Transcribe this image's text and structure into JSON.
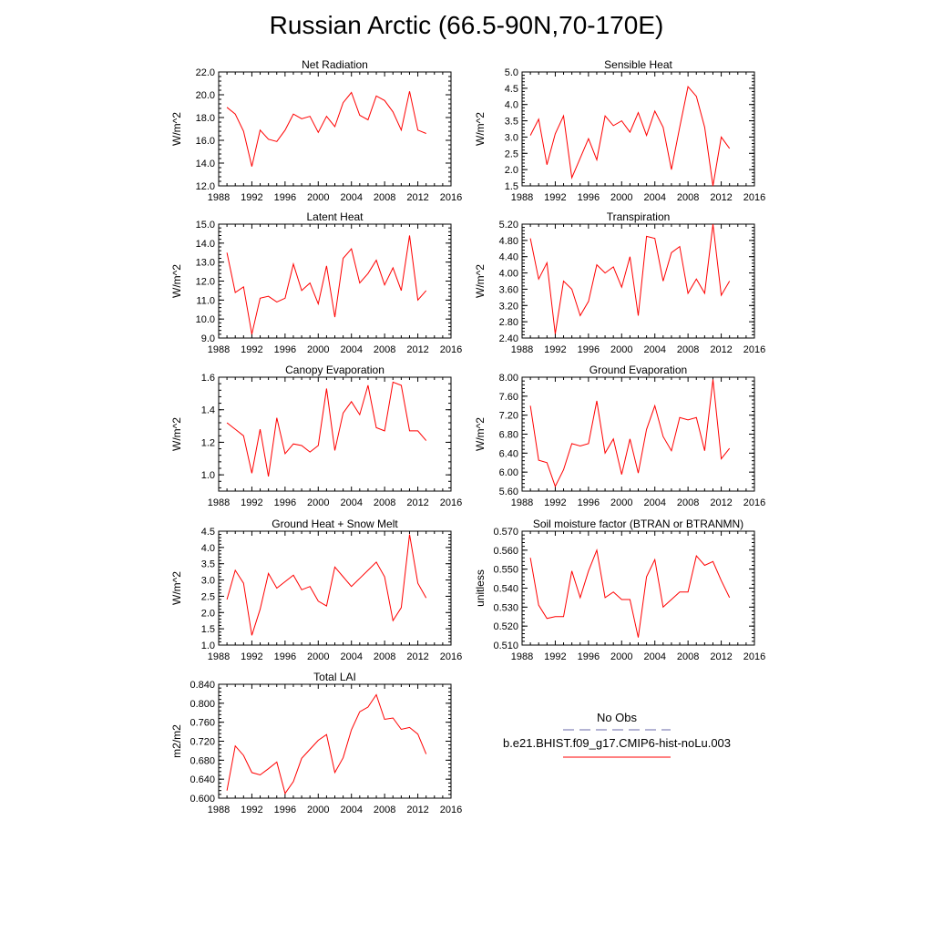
{
  "title": "Russian Arctic (66.5-90N,70-170E)",
  "colors": {
    "model": "#ff0000",
    "obs": "#6a6aa8"
  },
  "legend": {
    "obs_label": "No Obs",
    "model_label": "b.e21.BHIST.f09_g17.CMIP6-hist-noLu.003"
  },
  "chart_data": [
    {
      "type": "line",
      "title": "Net Radiation",
      "ylabel": "W/m^2",
      "xlim": [
        1988,
        2016
      ],
      "xticks": [
        1988,
        1992,
        1996,
        2000,
        2004,
        2008,
        2012,
        2016
      ],
      "xtick_labels": [
        "1988",
        "1992",
        "1996",
        "2000",
        "2004",
        "2008",
        "2012",
        "2016"
      ],
      "ylim": [
        12,
        22
      ],
      "yticks": [
        12,
        14,
        16,
        18,
        20,
        22
      ],
      "ytick_labels": [
        "12.0",
        "14.0",
        "16.0",
        "18.0",
        "20.0",
        "22.0"
      ],
      "series": [
        {
          "x": [
            1989,
            1990,
            1991,
            1992,
            1993,
            1994,
            1995,
            1996,
            1997,
            1998,
            1999,
            2000,
            2001,
            2002,
            2003,
            2004,
            2005,
            2006,
            2007,
            2008,
            2009,
            2010,
            2011,
            2012,
            2013
          ],
          "y": [
            18.9,
            18.3,
            16.8,
            13.7,
            16.9,
            16.1,
            15.9,
            16.9,
            18.3,
            17.9,
            18.1,
            16.7,
            18.1,
            17.2,
            19.3,
            20.2,
            18.2,
            17.8,
            19.9,
            19.5,
            18.5,
            16.9,
            20.3,
            16.9,
            16.6
          ]
        }
      ]
    },
    {
      "type": "line",
      "title": "Sensible Heat",
      "ylabel": "W/m^2",
      "xlim": [
        1988,
        2016
      ],
      "xticks": [
        1988,
        1992,
        1996,
        2000,
        2004,
        2008,
        2012,
        2016
      ],
      "xtick_labels": [
        "1988",
        "1992",
        "1996",
        "2000",
        "2004",
        "2008",
        "2012",
        "2016"
      ],
      "ylim": [
        1.5,
        5.0
      ],
      "yticks": [
        1.5,
        2.0,
        2.5,
        3.0,
        3.5,
        4.0,
        4.5,
        5.0
      ],
      "ytick_labels": [
        "1.5",
        "2.0",
        "2.5",
        "3.0",
        "3.5",
        "4.0",
        "4.5",
        "5.0"
      ],
      "series": [
        {
          "x": [
            1989,
            1990,
            1991,
            1992,
            1993,
            1994,
            1995,
            1996,
            1997,
            1998,
            1999,
            2000,
            2001,
            2002,
            2003,
            2004,
            2005,
            2006,
            2007,
            2008,
            2009,
            2010,
            2011,
            2012,
            2013
          ],
          "y": [
            3.05,
            3.55,
            2.15,
            3.1,
            3.65,
            1.75,
            2.35,
            2.95,
            2.3,
            3.65,
            3.35,
            3.5,
            3.15,
            3.75,
            3.05,
            3.8,
            3.3,
            2.0,
            3.3,
            4.55,
            4.25,
            3.3,
            1.5,
            3.0,
            2.65
          ]
        }
      ]
    },
    {
      "type": "line",
      "title": "Latent Heat",
      "ylabel": "W/m^2",
      "xlim": [
        1988,
        2016
      ],
      "xticks": [
        1988,
        1992,
        1996,
        2000,
        2004,
        2008,
        2012,
        2016
      ],
      "xtick_labels": [
        "1988",
        "1992",
        "1996",
        "2000",
        "2004",
        "2008",
        "2012",
        "2016"
      ],
      "ylim": [
        9,
        15
      ],
      "yticks": [
        9,
        10,
        11,
        12,
        13,
        14,
        15
      ],
      "ytick_labels": [
        "9.0",
        "10.0",
        "11.0",
        "12.0",
        "13.0",
        "14.0",
        "15.0"
      ],
      "series": [
        {
          "x": [
            1989,
            1990,
            1991,
            1992,
            1993,
            1994,
            1995,
            1996,
            1997,
            1998,
            1999,
            2000,
            2001,
            2002,
            2003,
            2004,
            2005,
            2006,
            2007,
            2008,
            2009,
            2010,
            2011,
            2012,
            2013
          ],
          "y": [
            13.5,
            11.4,
            11.7,
            9.2,
            11.1,
            11.2,
            10.9,
            11.1,
            12.9,
            11.5,
            11.9,
            10.8,
            12.8,
            10.1,
            13.2,
            13.7,
            11.9,
            12.4,
            13.1,
            11.8,
            12.7,
            11.5,
            14.4,
            11.0,
            11.5
          ]
        }
      ]
    },
    {
      "type": "line",
      "title": "Transpiration",
      "ylabel": "W/m^2",
      "xlim": [
        1988,
        2016
      ],
      "xticks": [
        1988,
        1992,
        1996,
        2000,
        2004,
        2008,
        2012,
        2016
      ],
      "xtick_labels": [
        "1988",
        "1992",
        "1996",
        "2000",
        "2004",
        "2008",
        "2012",
        "2016"
      ],
      "ylim": [
        2.4,
        5.2
      ],
      "yticks": [
        2.4,
        2.8,
        3.2,
        3.6,
        4.0,
        4.4,
        4.8,
        5.2
      ],
      "ytick_labels": [
        "2.40",
        "2.80",
        "3.20",
        "3.60",
        "4.00",
        "4.40",
        "4.80",
        "5.20"
      ],
      "series": [
        {
          "x": [
            1989,
            1990,
            1991,
            1992,
            1993,
            1994,
            1995,
            1996,
            1997,
            1998,
            1999,
            2000,
            2001,
            2002,
            2003,
            2004,
            2005,
            2006,
            2007,
            2008,
            2009,
            2010,
            2011,
            2012,
            2013
          ],
          "y": [
            4.85,
            3.85,
            4.25,
            2.5,
            3.8,
            3.6,
            2.95,
            3.3,
            4.2,
            4.0,
            4.15,
            3.65,
            4.4,
            2.95,
            4.9,
            4.85,
            3.8,
            4.5,
            4.65,
            3.5,
            3.85,
            3.5,
            5.2,
            3.45,
            3.8
          ]
        }
      ]
    },
    {
      "type": "line",
      "title": "Canopy Evaporation",
      "ylabel": "W/m^2",
      "xlim": [
        1988,
        2016
      ],
      "xticks": [
        1988,
        1992,
        1996,
        2000,
        2004,
        2008,
        2012,
        2016
      ],
      "xtick_labels": [
        "1988",
        "1992",
        "1996",
        "2000",
        "2004",
        "2008",
        "2012",
        "2016"
      ],
      "ylim": [
        0.9,
        1.6
      ],
      "yticks": [
        1.0,
        1.2,
        1.4,
        1.6
      ],
      "ytick_labels": [
        "1.0",
        "1.2",
        "1.4",
        "1.6"
      ],
      "series": [
        {
          "x": [
            1989,
            1990,
            1991,
            1992,
            1993,
            1994,
            1995,
            1996,
            1997,
            1998,
            1999,
            2000,
            2001,
            2002,
            2003,
            2004,
            2005,
            2006,
            2007,
            2008,
            2009,
            2010,
            2011,
            2012,
            2013
          ],
          "y": [
            1.32,
            1.28,
            1.24,
            1.01,
            1.28,
            0.99,
            1.35,
            1.13,
            1.19,
            1.18,
            1.14,
            1.18,
            1.53,
            1.15,
            1.38,
            1.45,
            1.37,
            1.55,
            1.29,
            1.27,
            1.57,
            1.55,
            1.27,
            1.27,
            1.21
          ]
        }
      ]
    },
    {
      "type": "line",
      "title": "Ground Evaporation",
      "ylabel": "W/m^2",
      "xlim": [
        1988,
        2016
      ],
      "xticks": [
        1988,
        1992,
        1996,
        2000,
        2004,
        2008,
        2012,
        2016
      ],
      "xtick_labels": [
        "1988",
        "1992",
        "1996",
        "2000",
        "2004",
        "2008",
        "2012",
        "2016"
      ],
      "ylim": [
        5.6,
        8.0
      ],
      "yticks": [
        5.6,
        6.0,
        6.4,
        6.8,
        7.2,
        7.6,
        8.0
      ],
      "ytick_labels": [
        "5.60",
        "6.00",
        "6.40",
        "6.80",
        "7.20",
        "7.60",
        "8.00"
      ],
      "series": [
        {
          "x": [
            1989,
            1990,
            1991,
            1992,
            1993,
            1994,
            1995,
            1996,
            1997,
            1998,
            1999,
            2000,
            2001,
            2002,
            2003,
            2004,
            2005,
            2006,
            2007,
            2008,
            2009,
            2010,
            2011,
            2012,
            2013
          ],
          "y": [
            7.4,
            6.25,
            6.2,
            5.7,
            6.05,
            6.6,
            6.55,
            6.6,
            7.5,
            6.4,
            6.7,
            5.95,
            6.7,
            5.98,
            6.9,
            7.4,
            6.75,
            6.45,
            7.15,
            7.1,
            7.15,
            6.45,
            7.95,
            6.28,
            6.5
          ]
        }
      ]
    },
    {
      "type": "line",
      "title": "Ground Heat + Snow Melt",
      "ylabel": "W/m^2",
      "xlim": [
        1988,
        2016
      ],
      "xticks": [
        1988,
        1992,
        1996,
        2000,
        2004,
        2008,
        2012,
        2016
      ],
      "xtick_labels": [
        "1988",
        "1992",
        "1996",
        "2000",
        "2004",
        "2008",
        "2012",
        "2016"
      ],
      "ylim": [
        1.0,
        4.5
      ],
      "yticks": [
        1.0,
        1.5,
        2.0,
        2.5,
        3.0,
        3.5,
        4.0,
        4.5
      ],
      "ytick_labels": [
        "1.0",
        "1.5",
        "2.0",
        "2.5",
        "3.0",
        "3.5",
        "4.0",
        "4.5"
      ],
      "series": [
        {
          "x": [
            1989,
            1990,
            1991,
            1992,
            1993,
            1994,
            1995,
            1996,
            1997,
            1998,
            1999,
            2000,
            2001,
            2002,
            2003,
            2004,
            2005,
            2006,
            2007,
            2008,
            2009,
            2010,
            2011,
            2012,
            2013
          ],
          "y": [
            2.4,
            3.3,
            2.9,
            1.3,
            2.1,
            3.2,
            2.75,
            2.95,
            3.15,
            2.7,
            2.8,
            2.35,
            2.2,
            3.4,
            3.1,
            2.8,
            3.05,
            3.3,
            3.55,
            3.1,
            1.75,
            2.15,
            4.4,
            2.9,
            2.45
          ]
        }
      ]
    },
    {
      "type": "line",
      "title": "Soil moisture factor (BTRAN or BTRANMN)",
      "ylabel": "unitless",
      "xlim": [
        1988,
        2016
      ],
      "xticks": [
        1988,
        1992,
        1996,
        2000,
        2004,
        2008,
        2012,
        2016
      ],
      "xtick_labels": [
        "1988",
        "1992",
        "1996",
        "2000",
        "2004",
        "2008",
        "2012",
        "2016"
      ],
      "ylim": [
        0.51,
        0.57
      ],
      "yticks": [
        0.51,
        0.52,
        0.53,
        0.54,
        0.55,
        0.56,
        0.57
      ],
      "ytick_labels": [
        "0.510",
        "0.520",
        "0.530",
        "0.540",
        "0.550",
        "0.560",
        "0.570"
      ],
      "series": [
        {
          "x": [
            1989,
            1990,
            1991,
            1992,
            1993,
            1994,
            1995,
            1996,
            1997,
            1998,
            1999,
            2000,
            2001,
            2002,
            2003,
            2004,
            2005,
            2006,
            2007,
            2008,
            2009,
            2010,
            2011,
            2012,
            2013
          ],
          "y": [
            0.556,
            0.531,
            0.524,
            0.525,
            0.525,
            0.549,
            0.535,
            0.549,
            0.56,
            0.535,
            0.538,
            0.534,
            0.534,
            0.514,
            0.546,
            0.555,
            0.53,
            0.534,
            0.538,
            0.538,
            0.557,
            0.552,
            0.554,
            0.544,
            0.535
          ]
        }
      ]
    },
    {
      "type": "line",
      "title": "Total LAI",
      "ylabel": "m2/m2",
      "xlim": [
        1988,
        2016
      ],
      "xticks": [
        1988,
        1992,
        1996,
        2000,
        2004,
        2008,
        2012,
        2016
      ],
      "xtick_labels": [
        "1988",
        "1992",
        "1996",
        "2000",
        "2004",
        "2008",
        "2012",
        "2016"
      ],
      "ylim": [
        0.6,
        0.84
      ],
      "yticks": [
        0.6,
        0.64,
        0.68,
        0.72,
        0.76,
        0.8,
        0.84
      ],
      "ytick_labels": [
        "0.600",
        "0.640",
        "0.680",
        "0.720",
        "0.760",
        "0.800",
        "0.840"
      ],
      "series": [
        {
          "x": [
            1989,
            1990,
            1991,
            1992,
            1993,
            1994,
            1995,
            1996,
            1997,
            1998,
            1999,
            2000,
            2001,
            2002,
            2003,
            2004,
            2005,
            2006,
            2007,
            2008,
            2009,
            2010,
            2011,
            2012,
            2013
          ],
          "y": [
            0.616,
            0.71,
            0.69,
            0.654,
            0.649,
            0.662,
            0.676,
            0.61,
            0.635,
            0.684,
            0.703,
            0.722,
            0.734,
            0.654,
            0.685,
            0.744,
            0.782,
            0.792,
            0.818,
            0.766,
            0.769,
            0.745,
            0.749,
            0.735,
            0.693
          ]
        }
      ]
    }
  ]
}
